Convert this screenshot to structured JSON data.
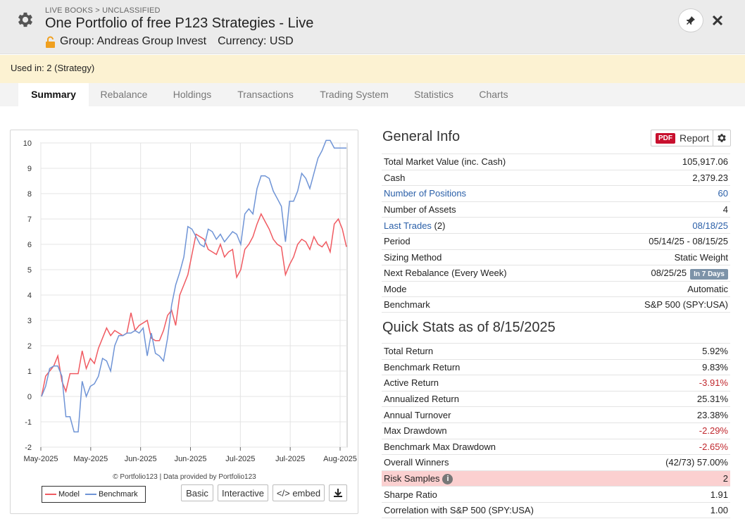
{
  "header": {
    "breadcrumb": "LIVE BOOKS > UNCLASSIFIED",
    "title": "One Portfolio of free P123 Strategies - Live",
    "group": "Group: Andreas Group Invest",
    "currency": "Currency: USD",
    "icons": {
      "settings": "gear-icon",
      "lock": "lock-icon",
      "pin": "pin-icon",
      "close": "close-icon"
    }
  },
  "used_in": "Used in: 2 (Strategy)",
  "tabs": [
    {
      "label": "Summary",
      "active": true
    },
    {
      "label": "Rebalance"
    },
    {
      "label": "Holdings"
    },
    {
      "label": "Transactions"
    },
    {
      "label": "Trading System"
    },
    {
      "label": "Statistics"
    },
    {
      "label": "Charts"
    }
  ],
  "chart": {
    "credit": "© Portfolio123 | Data provided by Portfolio123",
    "legend": [
      "Model",
      "Benchmark"
    ],
    "buttons": {
      "basic": "Basic",
      "interactive": "Interactive",
      "embed": "</> embed"
    },
    "colors": {
      "model": "#f05a61",
      "benchmark": "#6f94d6"
    }
  },
  "chart_data": {
    "type": "line",
    "x_tick_labels": [
      "May-2025",
      "May-2025",
      "Jun-2025",
      "Jun-2025",
      "Jul-2025",
      "Jul-2025",
      "Aug-2025"
    ],
    "ylim": [
      -2,
      10
    ],
    "y_ticks": [
      -2,
      -1,
      0,
      1,
      2,
      3,
      4,
      5,
      6,
      7,
      8,
      9,
      10
    ],
    "grid": true,
    "legend_position": "bottom-left",
    "series": [
      {
        "name": "Model",
        "values": [
          0,
          0.8,
          1.0,
          1.2,
          1.6,
          0.6,
          0.2,
          0.9,
          0.9,
          0.9,
          1.8,
          1.1,
          1.5,
          1.3,
          1.9,
          2.3,
          2.7,
          2.4,
          2.6,
          2.5,
          2.4,
          2.5,
          3.3,
          2.6,
          2.8,
          2.9,
          3.0,
          2.3,
          2.2,
          2.2,
          2.6,
          3.2,
          3.4,
          2.8,
          4.0,
          4.4,
          4.8,
          5.6,
          6.4,
          6.3,
          6.2,
          5.8,
          5.7,
          5.6,
          6.0,
          5.5,
          5.7,
          5.8,
          4.7,
          5.0,
          5.8,
          6.0,
          6.3,
          6.8,
          7.2,
          6.9,
          6.6,
          6.2,
          6.0,
          5.9,
          4.8,
          5.2,
          5.5,
          6.0,
          6.2,
          6.1,
          5.8,
          6.3,
          6.0,
          5.9,
          6.1,
          5.7,
          6.8,
          7.0,
          6.6,
          5.9
        ]
      },
      {
        "name": "Benchmark",
        "values": [
          0,
          0.4,
          1.1,
          1.2,
          1.2,
          0.8,
          -0.8,
          -0.8,
          -1.4,
          -1.4,
          0.6,
          0.0,
          0.4,
          0.5,
          0.8,
          1.5,
          1.4,
          1.0,
          2.0,
          2.4,
          2.4,
          2.5,
          2.5,
          2.6,
          2.5,
          2.7,
          1.6,
          2.5,
          1.7,
          1.6,
          1.4,
          2.3,
          3.6,
          4.4,
          4.9,
          5.5,
          6.7,
          6.6,
          6.3,
          6.0,
          5.9,
          6.6,
          6.5,
          6.2,
          6.4,
          6.1,
          6.3,
          6.5,
          6.4,
          6.0,
          7.2,
          7.4,
          7.2,
          8.2,
          8.7,
          8.7,
          8.6,
          8.1,
          7.8,
          7.5,
          6.1,
          7.7,
          7.7,
          8.1,
          8.8,
          8.6,
          8.2,
          8.8,
          9.4,
          9.7,
          10.1,
          10.1,
          9.8,
          9.8,
          9.8,
          9.8
        ]
      }
    ]
  },
  "general_info": {
    "title": "General Info",
    "report_label": "Report",
    "pdf_badge": "PDF",
    "rows": [
      {
        "label": "Total Market Value (inc. Cash)",
        "value": "105,917.06"
      },
      {
        "label": "Cash",
        "value": "2,379.23"
      },
      {
        "label": "Number of Positions",
        "value": "60"
      },
      {
        "label": "Number of Assets",
        "value": "4"
      },
      {
        "label": "Last Trades",
        "label_suffix": " (2)",
        "value": "08/18/25"
      },
      {
        "label": "Period",
        "value": "05/14/25 - 08/15/25"
      },
      {
        "label": "Sizing Method",
        "value": "Static Weight"
      },
      {
        "label": "Next Rebalance (Every Week)",
        "value": "08/25/25",
        "badge": "In 7 Days"
      },
      {
        "label": "Mode",
        "value": "Automatic"
      },
      {
        "label": "Benchmark",
        "value": "S&P 500 (SPY:USA)"
      }
    ]
  },
  "quick_stats": {
    "title": "Quick Stats as of 8/15/2025",
    "rows": [
      {
        "label": "Total Return",
        "value": "5.92%"
      },
      {
        "label": "Benchmark Return",
        "value": "9.83%"
      },
      {
        "label": "Active Return",
        "value": "-3.91%"
      },
      {
        "label": "Annualized Return",
        "value": "25.31%"
      },
      {
        "label": "Annual Turnover",
        "value": "23.38%"
      },
      {
        "label": "Max Drawdown",
        "value": "-2.29%"
      },
      {
        "label": "Benchmark Max Drawdown",
        "value": "-2.65%"
      },
      {
        "label": "Overall Winners",
        "value": "(42/73) 57.00%"
      },
      {
        "label": "Risk Samples",
        "value": "2"
      },
      {
        "label": "Sharpe Ratio",
        "value": "1.91"
      },
      {
        "label": "Correlation with S&P 500 (SPY:USA)",
        "value": "1.00"
      }
    ]
  }
}
